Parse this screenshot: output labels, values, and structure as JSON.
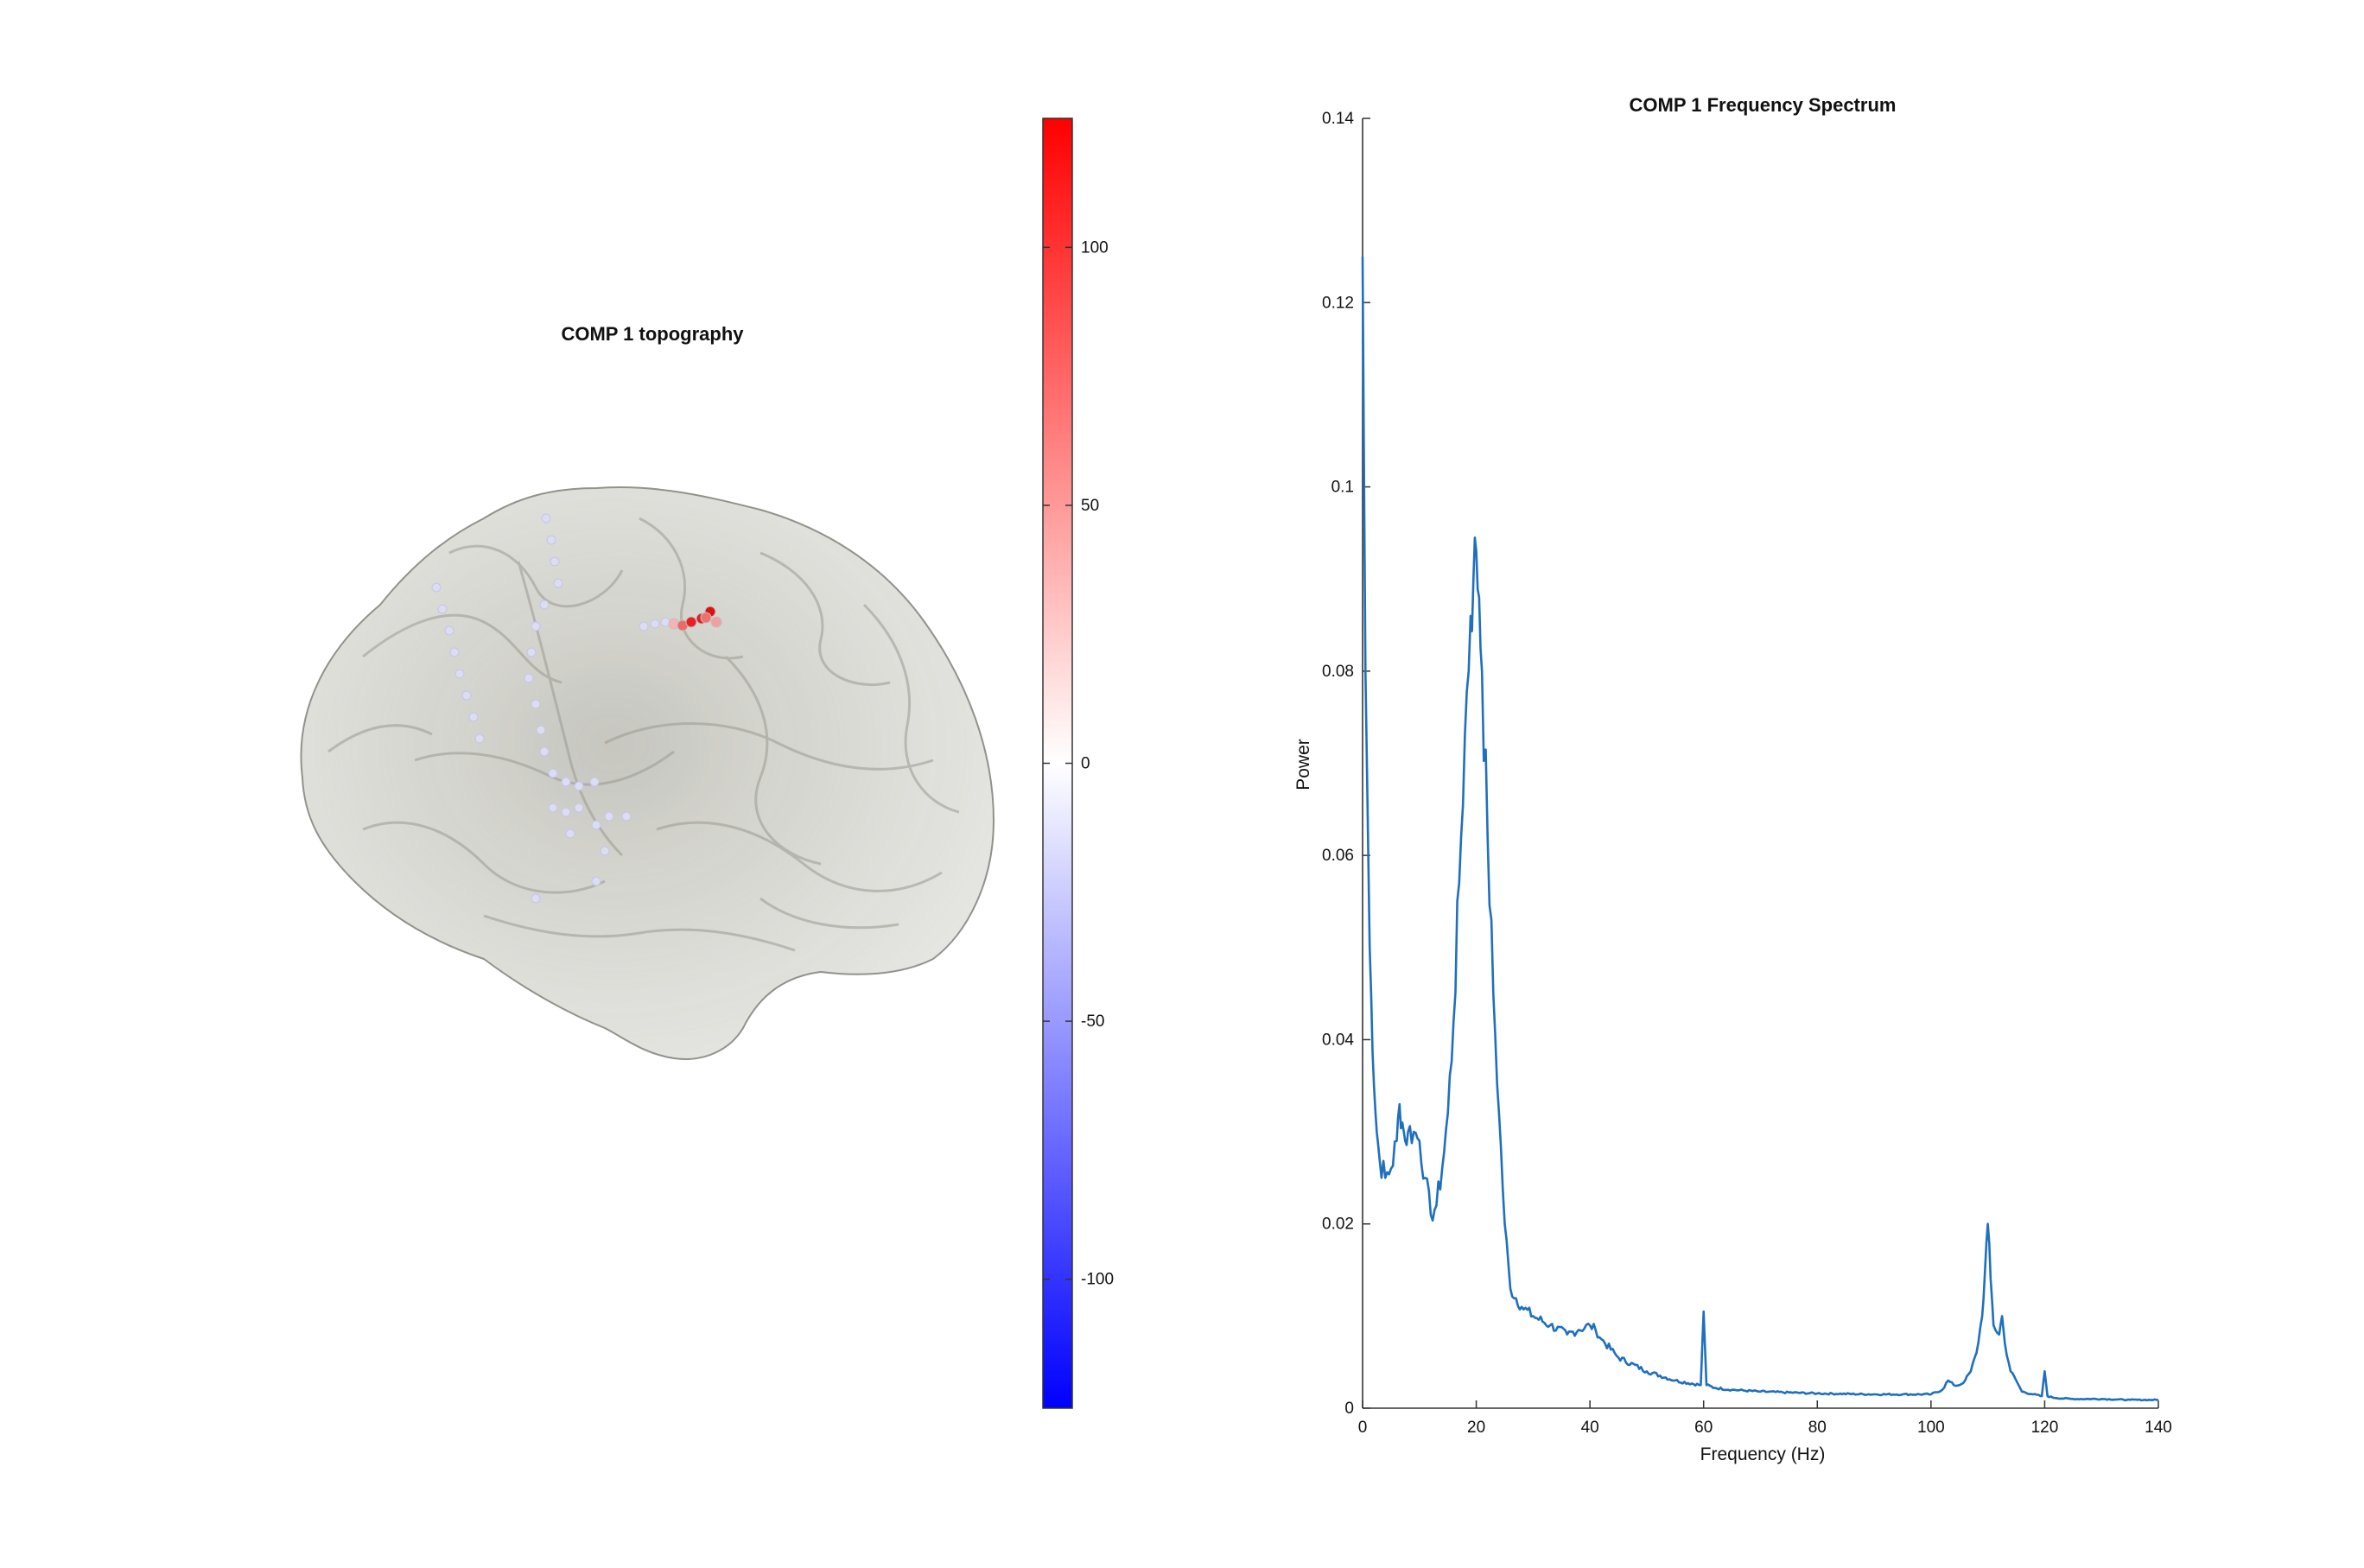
{
  "colors": {
    "line": "#1f6fbf",
    "axis": "#333333",
    "brain": "#c8c8c0",
    "brain_edge": "#8d8d86",
    "cmap_low": "#0000ff",
    "cmap_mid": "#ffffff",
    "cmap_high": "#ff0000"
  },
  "topography": {
    "title": "COMP 1 topography",
    "colorbar": {
      "range": [
        -125,
        125
      ],
      "ticks": [
        100,
        50,
        0,
        -50,
        -100
      ],
      "tick_labels": [
        "100",
        "50",
        "0",
        "-50",
        "-100"
      ]
    }
  },
  "chart_data": [
    {
      "type": "line",
      "title": "COMP 1 Frequency Spectrum",
      "xlabel": "Frequency (Hz)",
      "ylabel": "Power",
      "xlim": [
        0,
        140
      ],
      "ylim": [
        0,
        0.14
      ],
      "xticks": [
        0,
        20,
        40,
        60,
        80,
        100,
        120,
        140
      ],
      "xtick_labels": [
        "0",
        "20",
        "40",
        "60",
        "80",
        "100",
        "120",
        "140"
      ],
      "yticks": [
        0,
        0.02,
        0.04,
        0.06,
        0.08,
        0.1,
        0.12,
        0.14
      ],
      "ytick_labels": [
        "0",
        "0.02",
        "0.04",
        "0.06",
        "0.08",
        "0.1",
        "0.12",
        "0.14"
      ],
      "grid": false,
      "series": [
        {
          "x": [
            0,
            0.5,
            1,
            1.5,
            2,
            2.5,
            3,
            4,
            5,
            6,
            6.5,
            7,
            7.5,
            8,
            9,
            10,
            11,
            12,
            13,
            14,
            15,
            16,
            17,
            18,
            19,
            19.5,
            20,
            20.5,
            21,
            22,
            23,
            24,
            25,
            26,
            28,
            30,
            33,
            36,
            38,
            40,
            41,
            42,
            45,
            50,
            55,
            59.5,
            60,
            60.5,
            62,
            65,
            70,
            80,
            90,
            95,
            100,
            102,
            103,
            104,
            105,
            106,
            107,
            108,
            109,
            109.5,
            110,
            110.5,
            111,
            112,
            112.5,
            113,
            114,
            115,
            116,
            118,
            119.5,
            120,
            120.5,
            122,
            125,
            130,
            135,
            140
          ],
          "y": [
            0.125,
            0.08,
            0.06,
            0.045,
            0.035,
            0.03,
            0.027,
            0.025,
            0.026,
            0.029,
            0.033,
            0.031,
            0.029,
            0.03,
            0.03,
            0.029,
            0.025,
            0.021,
            0.022,
            0.026,
            0.032,
            0.042,
            0.057,
            0.073,
            0.086,
            0.09,
            0.093,
            0.088,
            0.08,
            0.062,
            0.045,
            0.032,
            0.02,
            0.013,
            0.011,
            0.01,
            0.009,
            0.008,
            0.0085,
            0.009,
            0.0085,
            0.0075,
            0.0055,
            0.004,
            0.003,
            0.0025,
            0.0105,
            0.0025,
            0.0022,
            0.002,
            0.0018,
            0.0016,
            0.0015,
            0.0015,
            0.0015,
            0.002,
            0.003,
            0.0025,
            0.0025,
            0.003,
            0.004,
            0.006,
            0.01,
            0.015,
            0.02,
            0.014,
            0.009,
            0.008,
            0.01,
            0.007,
            0.004,
            0.003,
            0.0018,
            0.0015,
            0.0013,
            0.004,
            0.0013,
            0.0011,
            0.001,
            0.001,
            0.0009,
            0.0009
          ]
        }
      ]
    }
  ]
}
